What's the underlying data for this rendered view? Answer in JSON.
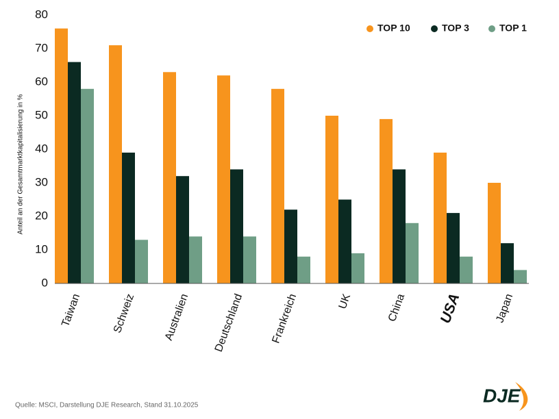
{
  "chart_data": {
    "type": "bar",
    "y_label": "Anteil an der Gesamtmarktkapitalisierung in %",
    "categories": [
      "Taiwan",
      "Schweiz",
      "Australien",
      "Deutschland",
      "Frankreich",
      "UK",
      "China",
      "USA",
      "Japan"
    ],
    "highlight_index": 7,
    "series": [
      {
        "name": "TOP 10",
        "color": "#f7941d",
        "values": [
          76,
          71,
          63,
          62,
          58,
          50,
          49,
          39,
          30
        ]
      },
      {
        "name": "TOP 3",
        "color": "#0b2a22",
        "values": [
          66,
          39,
          32,
          34,
          22,
          25,
          34,
          21,
          12
        ]
      },
      {
        "name": "TOP 1",
        "color": "#6f9e86",
        "values": [
          58,
          13,
          14,
          14,
          8,
          9,
          18,
          8,
          4
        ]
      }
    ],
    "ylim": [
      0,
      80
    ],
    "yticks": [
      0,
      10,
      20,
      30,
      40,
      50,
      60,
      70,
      80
    ],
    "grid": false,
    "legend": "top-right",
    "source": "Quelle: MSCI, Darstellung DJE Research, Stand 31.10.2025",
    "logo": "DJE"
  }
}
